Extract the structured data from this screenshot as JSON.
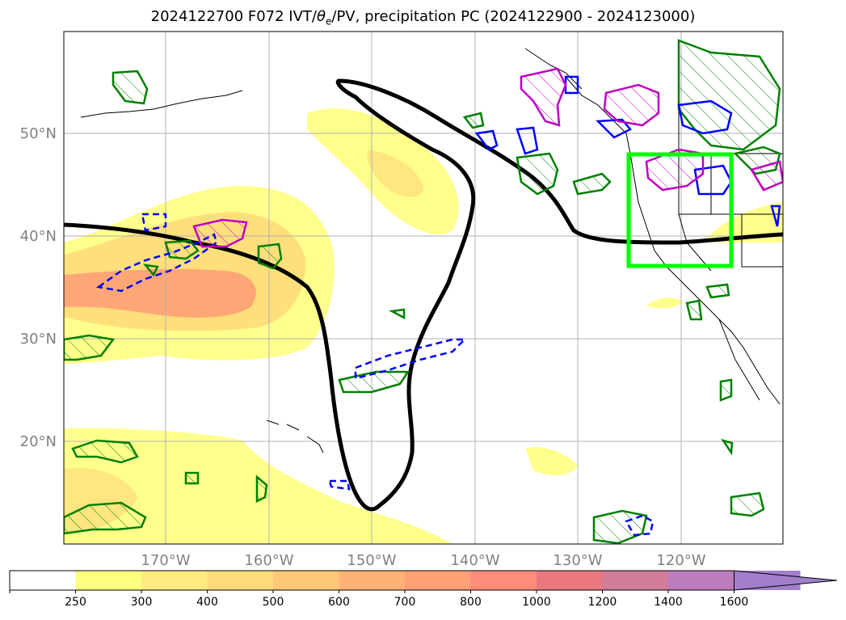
{
  "title_main": "2024122700 F072 IVT/",
  "title_theta": "θ",
  "title_theta_sub": "e",
  "title_rest": "/PV, precipitation PC (2024122900 - 2024123000)",
  "map": {
    "lat_labels": [
      "50°N",
      "40°N",
      "30°N",
      "20°N"
    ],
    "lon_labels": [
      "170°W",
      "160°W",
      "150°W",
      "140°W",
      "130°W",
      "120°W"
    ]
  },
  "colorbar": {
    "ticks": [
      "250",
      "300",
      "400",
      "500",
      "600",
      "700",
      "800",
      "1000",
      "1200",
      "1400",
      "1600"
    ],
    "colors": [
      "#ffffff",
      "#ffff80",
      "#ffeb7f",
      "#ffdb7a",
      "#ffc878",
      "#ffb276",
      "#ffa075",
      "#ff8c78",
      "#e9797e",
      "#d07c9a",
      "#bb7dbd",
      "#a37fcb"
    ]
  },
  "colors": {
    "ivt_light": "#ffff80",
    "ivt_mid": "#ffdb7a",
    "ivt_high": "#ffa075",
    "pv_contour": "#000000",
    "positive_precip": "#008000",
    "negative_precip": "#0000ff",
    "magenta_contour": "#c000c0",
    "target_box": "#00ff00"
  }
}
